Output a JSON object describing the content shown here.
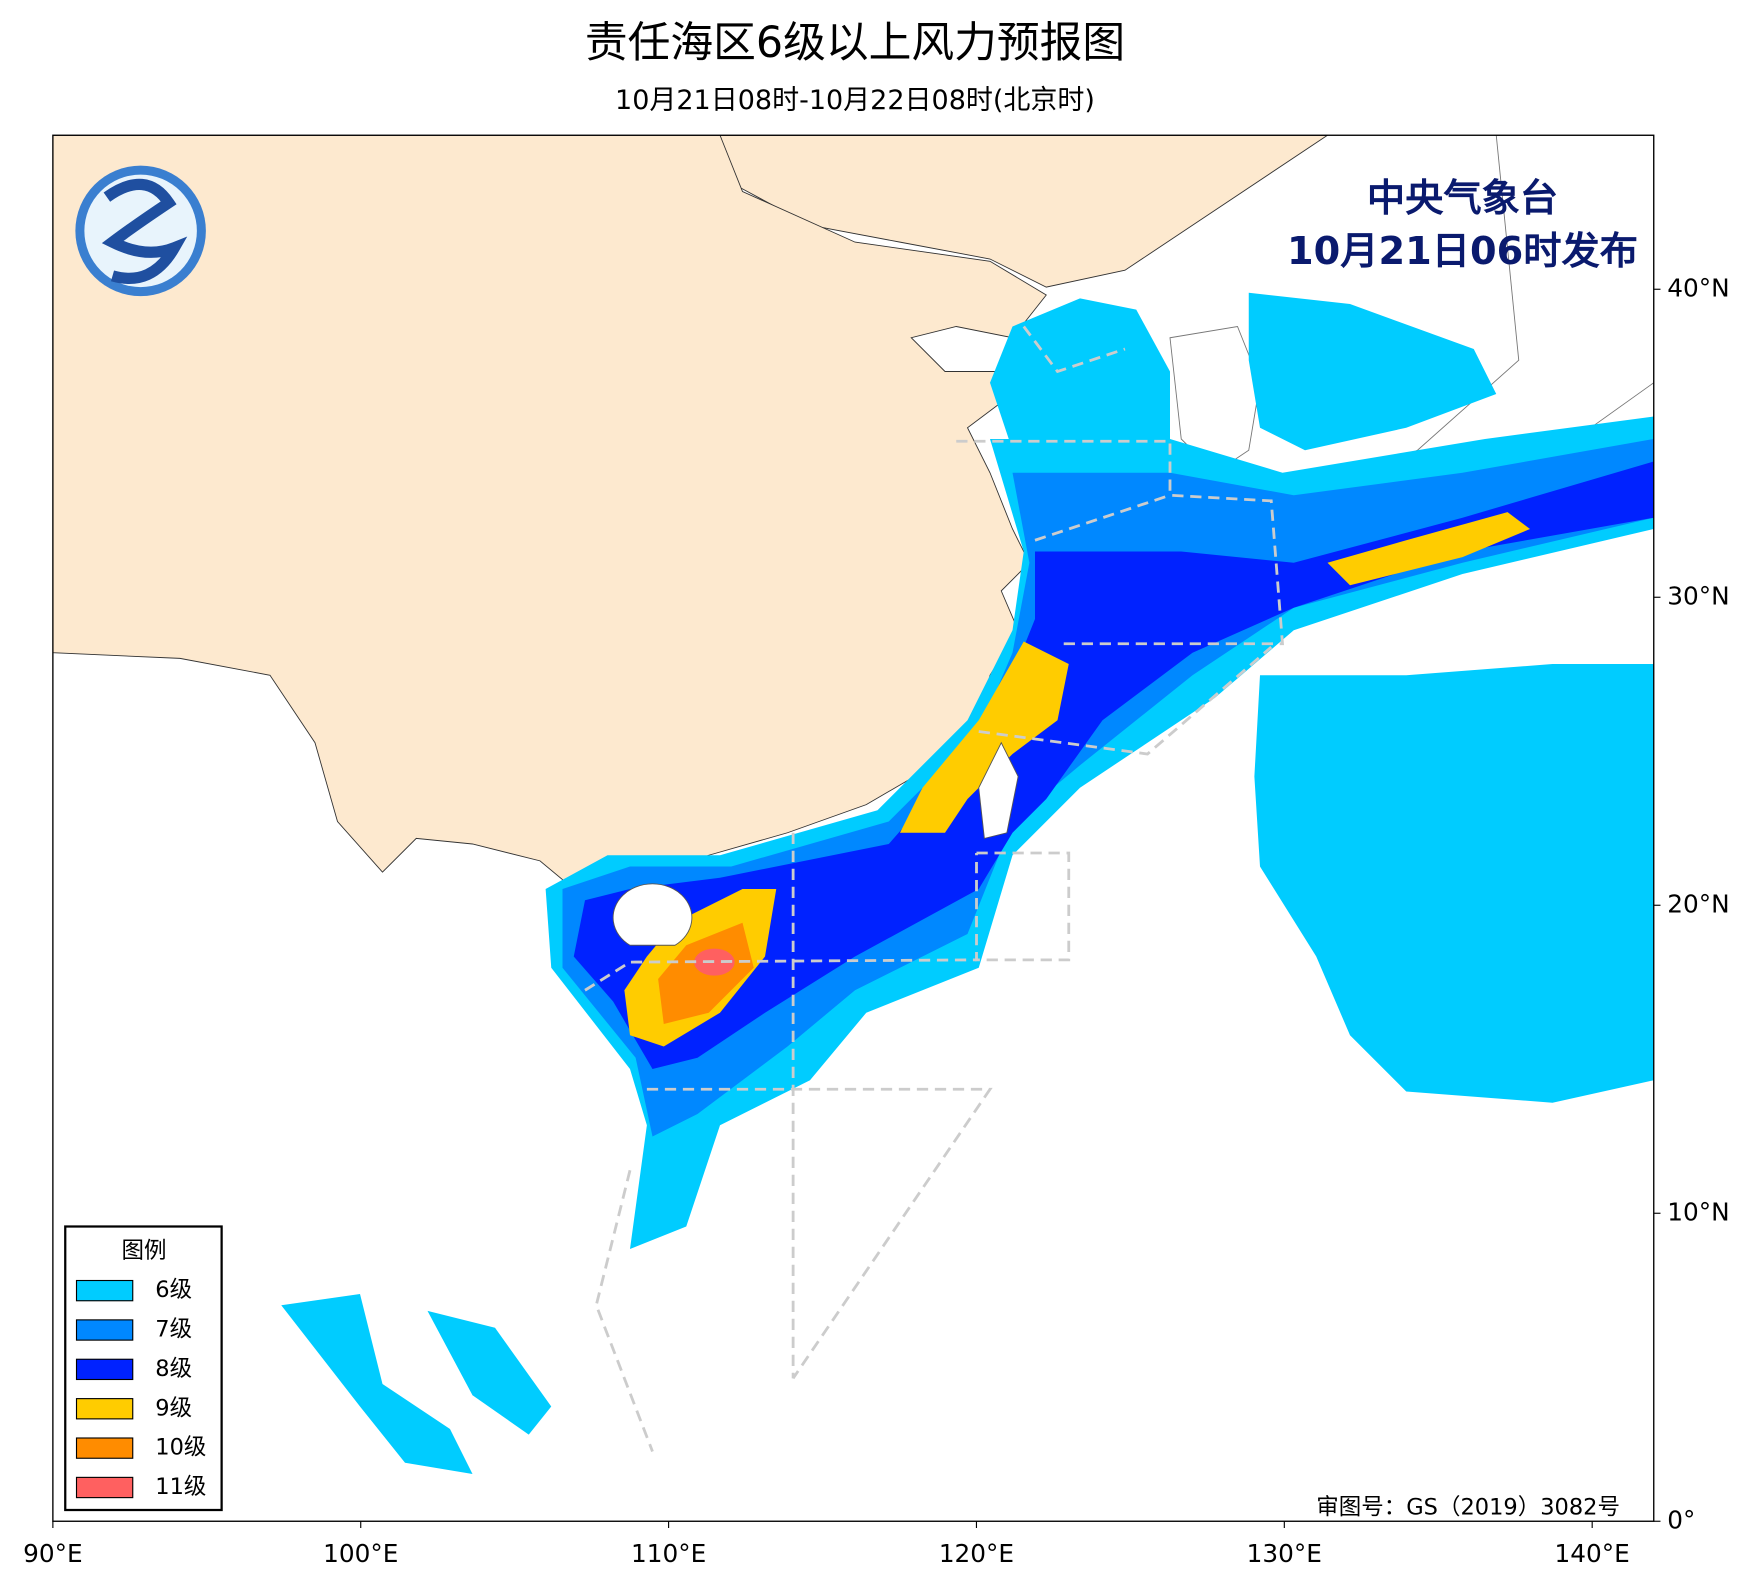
{
  "title": "责任海区6级以上风力预报图",
  "subtitle": "10月21日08时-10月22日08时(北京时)",
  "issuer": [
    "中央气象台",
    "10月21日06时发布"
  ],
  "review_number": "审图号：GS（2019）3082号",
  "map": {
    "xlim": [
      90,
      142
    ],
    "ylim": [
      0,
      45
    ],
    "xticks": [
      {
        "value": 90,
        "label": "90°E"
      },
      {
        "value": 100,
        "label": "100°E"
      },
      {
        "value": 110,
        "label": "110°E"
      },
      {
        "value": 120,
        "label": "120°E"
      },
      {
        "value": 130,
        "label": "130°E"
      },
      {
        "value": 140,
        "label": "140°E"
      }
    ],
    "yticks": [
      {
        "value": 0,
        "label": "0°"
      },
      {
        "value": 10,
        "label": "10°N"
      },
      {
        "value": 20,
        "label": "20°N"
      },
      {
        "value": 30,
        "label": "30°N"
      },
      {
        "value": 40,
        "label": "40°N"
      }
    ]
  },
  "legend": {
    "title": "图例",
    "items": [
      {
        "label": "6级",
        "color": "#00ccff"
      },
      {
        "label": "7级",
        "color": "#0088ff"
      },
      {
        "label": "8级",
        "color": "#0022ff"
      },
      {
        "label": "9级",
        "color": "#ffcc00"
      },
      {
        "label": "10级",
        "color": "#ff8c00"
      },
      {
        "label": "11级",
        "color": "#ff6060"
      }
    ]
  }
}
